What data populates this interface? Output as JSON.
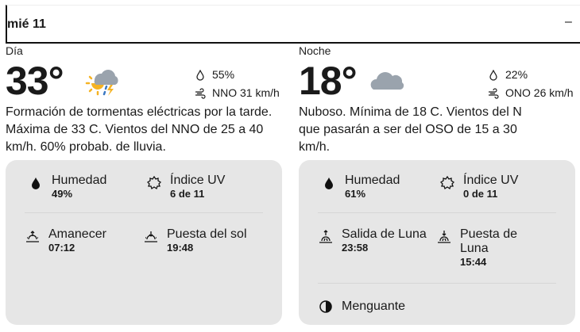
{
  "header": {
    "date": "mié 11",
    "collapse": "–"
  },
  "day": {
    "label": "Día",
    "temp": "33°",
    "icon": "thunderstorm-partly-sunny-icon",
    "precip": "55%",
    "wind": "NNO 31 km/h",
    "description": "Formación de tormentas eléctricas por la tarde. Máxima de 33 C. Vientos del NNO de 25 a 40 km/h. 60% probab. de lluvia.",
    "humidity_label": "Humedad",
    "humidity": "49%",
    "uv_label": "Índice UV",
    "uv": "6 de 11",
    "rise_label": "Amanecer",
    "rise": "07:12",
    "set_label": "Puesta del sol",
    "set": "19:48"
  },
  "night": {
    "label": "Noche",
    "temp": "18°",
    "icon": "cloudy-icon",
    "precip": "22%",
    "wind": "ONO 26 km/h",
    "description": "Nuboso. Mínima de 18 C. Vientos del N que pasarán a ser del OSO de 15 a 30 km/h.",
    "humidity_label": "Humedad",
    "humidity": "61%",
    "uv_label": "Índice UV",
    "uv": "0 de 11",
    "rise_label": "Salida de Luna",
    "rise": "23:58",
    "set_label": "Puesta de Luna",
    "set": "15:44",
    "moon_phase": "Menguante"
  }
}
